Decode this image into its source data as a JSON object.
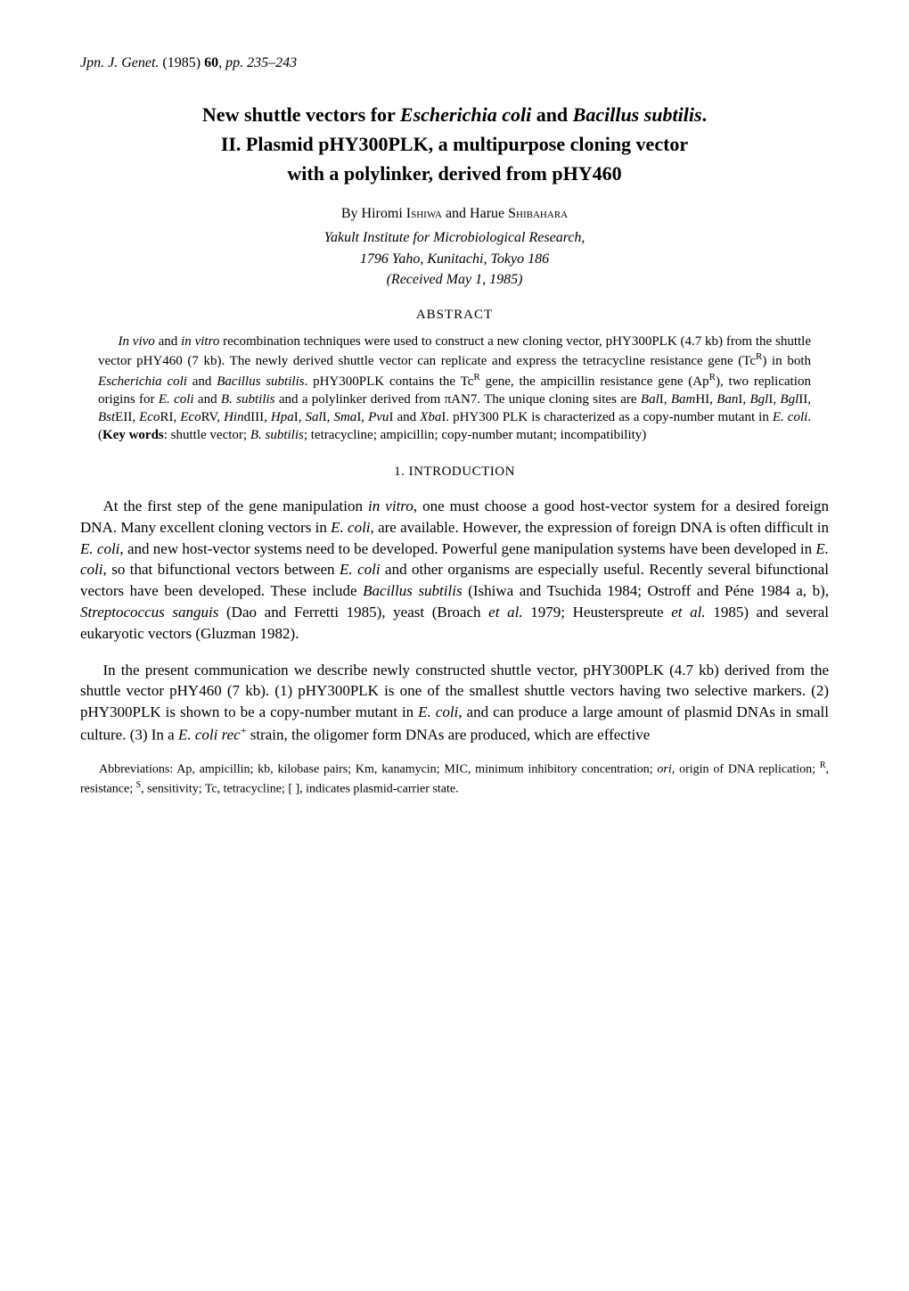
{
  "journal_ref": {
    "name": "Jpn. J. Genet.",
    "year": "(1985)",
    "volume": "60",
    "pages_prefix": ", pp. ",
    "pages": "235–243"
  },
  "title": {
    "line1_pre": "New shuttle vectors for ",
    "line1_sp1": "Escherichia coli",
    "line1_mid": " and ",
    "line1_sp2": "Bacillus subtilis",
    "line1_post": ".",
    "line2": "II.  Plasmid pHY300PLK, a multipurpose cloning vector",
    "line3": "with a polylinker, derived from pHY460"
  },
  "byline": {
    "by": "By ",
    "a1_first": "Hiromi ",
    "a1_last": "Ishiwa",
    "and": " and ",
    "a2_first": "Harue ",
    "a2_last": "Shibahara"
  },
  "affiliation": {
    "line1": "Yakult Institute for Microbiological Research,",
    "line2": "1796 Yaho, Kunitachi, Tokyo 186"
  },
  "received": "(Received May 1, 1985)",
  "abstract_heading": "ABSTRACT",
  "abstract": {
    "text": "<span class=\"indent\"></span><span class=\"ital\">In vivo</span> and <span class=\"ital\">in vitro</span> recombination techniques were used to construct a new cloning vector, pHY300PLK (4.7 kb) from the shuttle vector pHY460 (7 kb). The newly derived shuttle vector can replicate and express the tetracycline resistance gene (Tc<span class=\"sup\">R</span>) in both <span class=\"ital\">Escherichia coli</span> and <span class=\"ital\">Bacillus subtilis</span>. pHY300PLK contains the Tc<span class=\"sup\">R</span> gene, the ampicillin resistance gene (Ap<span class=\"sup\">R</span>), two replication origins for <span class=\"ital\">E. coli</span> and <span class=\"ital\">B. subtilis</span> and a polylinker derived from πAN7. The unique cloning sites are <span class=\"ital\">Bal</span>I, <span class=\"ital\">Bam</span>HI, <span class=\"ital\">Ban</span>I, <span class=\"ital\">Bgl</span>I, <span class=\"ital\">Bgl</span>II, <span class=\"ital\">Bst</span>EII, <span class=\"ital\">Eco</span>RI, <span class=\"ital\">Eco</span>RV, <span class=\"ital\">Hin</span>dIII, <span class=\"ital\">Hpa</span>I, <span class=\"ital\">Sal</span>I, <span class=\"ital\">Sma</span>I, <span class=\"ital\">Pvu</span>I and <span class=\"ital\">Xba</span>I. pHY300 PLK is characterized as a copy-number mutant in <span class=\"ital\">E. coli</span>. (<span class=\"keybold\">Key words</span>: shuttle vector; <span class=\"ital\">B. subtilis</span>; tetracycline; ampicillin; copy-number mutant; incompatibility)"
  },
  "section1_heading": "1.  INTRODUCTION",
  "intro": {
    "p1": "At the first step of the gene manipulation <span class=\"ital\">in vitro</span>, one must choose a good host-vector system for a desired foreign DNA. Many excellent cloning vectors in <span class=\"ital\">E. coli</span>, are available. However, the expression of foreign DNA is often difficult in <span class=\"ital\">E. coli</span>, and new host-vector systems need to be developed. Powerful gene manipulation systems have been developed in <span class=\"ital\">E. coli</span>, so that bifunctional vectors between <span class=\"ital\">E. coli</span> and other organisms are especially useful. Recently several bifunctional vectors have been developed. These include <span class=\"ital\">Bacillus subtilis</span> (Ishiwa and Tsuchida 1984; Ostroff and Péne 1984 a, b), <span class=\"ital\">Streptococcus sanguis</span> (Dao and Ferretti 1985), yeast (Broach <span class=\"ital\">et al.</span> 1979; Heusterspreute <span class=\"ital\">et al.</span> 1985) and several eukaryotic vectors (Gluzman 1982).",
    "p2": "In the present communication we describe newly constructed shuttle vector, pHY300PLK (4.7 kb) derived from the shuttle vector pHY460 (7 kb). (1) pHY300PLK is one of the smallest shuttle vectors having two selective markers. (2) pHY300PLK is shown to be a copy-number mutant in <span class=\"ital\">E. coli</span>, and can produce a large amount of plasmid DNAs in small culture. (3) In a <span class=\"ital\">E. coli rec</span><span class=\"sup\">+</span> strain, the oligomer form DNAs are produced, which are effective"
  },
  "footnote": "Abbreviations: Ap, ampicillin; kb, kilobase pairs; Km, kanamycin; MIC, minimum inhibitory concentration; <span class=\"ital\">ori</span>, origin of DNA replication; <span class=\"sup\">R</span>, resistance; <span class=\"sup\">S</span>, sensitivity; Tc, tetracycline; [ ], indicates plasmid-carrier state.",
  "colors": {
    "text": "#000000",
    "background": "#ffffff"
  },
  "typography": {
    "body_font": "Times New Roman",
    "journal_ref_fontsize": 16,
    "title_fontsize": 22,
    "byline_fontsize": 16,
    "abstract_fontsize": 15,
    "body_fontsize": 17,
    "footnote_fontsize": 14
  }
}
